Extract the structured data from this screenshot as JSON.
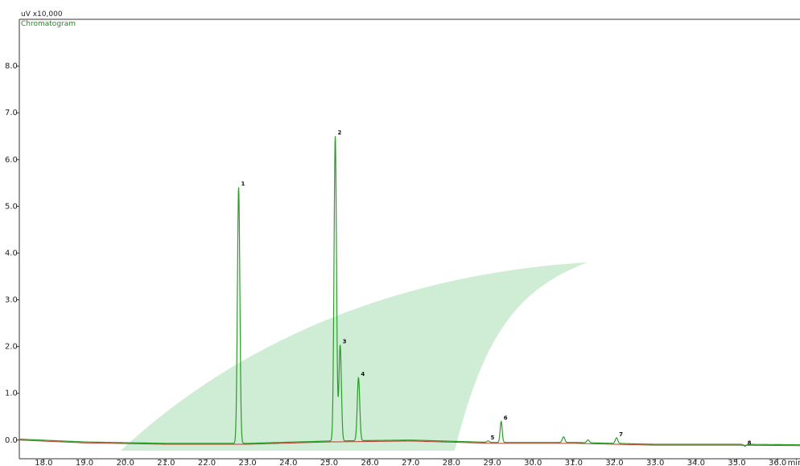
{
  "header": {
    "scale_text": "uV x10,000",
    "trace_name": "Chromatogram"
  },
  "chart_data": {
    "type": "line",
    "title": "",
    "xlabel": "min",
    "ylabel": "",
    "xlim": [
      17.4,
      36.55
    ],
    "ylim": [
      -0.4,
      9.0
    ],
    "x_ticks": [
      18.0,
      19.0,
      20.0,
      21.0,
      22.0,
      23.0,
      24.0,
      25.0,
      26.0,
      27.0,
      28.0,
      29.0,
      30.0,
      31.0,
      32.0,
      33.0,
      34.0,
      35.0,
      36.0
    ],
    "x_tick_labels": [
      "18.0",
      "19.0",
      "20.0",
      "21.0",
      "22.0",
      "23.0",
      "24.0",
      "25.0",
      "26.0",
      "27.0",
      "28.0",
      "29.0",
      "30.0",
      "31.0",
      "32.0",
      "33.0",
      "34.0",
      "35.0",
      "36.0"
    ],
    "x_unit_label": "min",
    "y_ticks": [
      0.0,
      1.0,
      2.0,
      3.0,
      4.0,
      5.0,
      6.0,
      7.0,
      8.0
    ],
    "y_tick_labels": [
      "0.0",
      "1.0",
      "2.0",
      "3.0",
      "4.0",
      "5.0",
      "6.0",
      "7.0",
      "8.0"
    ],
    "grid": false,
    "baseline": [
      [
        17.4,
        0.02
      ],
      [
        19.0,
        -0.04
      ],
      [
        21.0,
        -0.07
      ],
      [
        23.0,
        -0.07
      ],
      [
        25.0,
        -0.02
      ],
      [
        27.0,
        0.0
      ],
      [
        29.0,
        -0.05
      ],
      [
        31.0,
        -0.05
      ],
      [
        33.0,
        -0.09
      ],
      [
        35.0,
        -0.09
      ],
      [
        36.55,
        -0.1
      ]
    ],
    "peaks": [
      {
        "rt": 22.78,
        "height": 5.48,
        "width": 0.03,
        "label": "1",
        "color": "#2a9d2a"
      },
      {
        "rt": 25.15,
        "height": 6.52,
        "width": 0.03,
        "label": "2",
        "color": "#2a9d2a"
      },
      {
        "rt": 25.27,
        "height": 2.05,
        "width": 0.03,
        "label": "3",
        "color": "#2a9d2a"
      },
      {
        "rt": 25.72,
        "height": 1.35,
        "width": 0.03,
        "label": "4",
        "color": "#2a9d2a"
      },
      {
        "rt": 28.9,
        "height": 0.03,
        "width": 0.03,
        "label": "5",
        "color": "#2a9d2a"
      },
      {
        "rt": 29.22,
        "height": 0.45,
        "width": 0.025,
        "label": "6",
        "color": "#2a9d2a"
      },
      {
        "rt": 30.75,
        "height": 0.12,
        "width": 0.03,
        "label": "",
        "color": "#2a9d2a"
      },
      {
        "rt": 31.35,
        "height": 0.06,
        "width": 0.03,
        "label": "",
        "color": "#2a9d2a"
      },
      {
        "rt": 32.05,
        "height": 0.12,
        "width": 0.03,
        "label": "7",
        "color": "#2a9d2a"
      },
      {
        "rt": 35.2,
        "height": -0.04,
        "width": 0.03,
        "label": "8",
        "color": "#2a9d2a"
      }
    ],
    "colors": {
      "trace": "#2a9d2a",
      "baseline_trace": "#c0392b",
      "axis": "#333333",
      "header_text": "#222222",
      "trace_name_text": "#1e8c1e",
      "watermark": "#bfe6c5"
    }
  }
}
